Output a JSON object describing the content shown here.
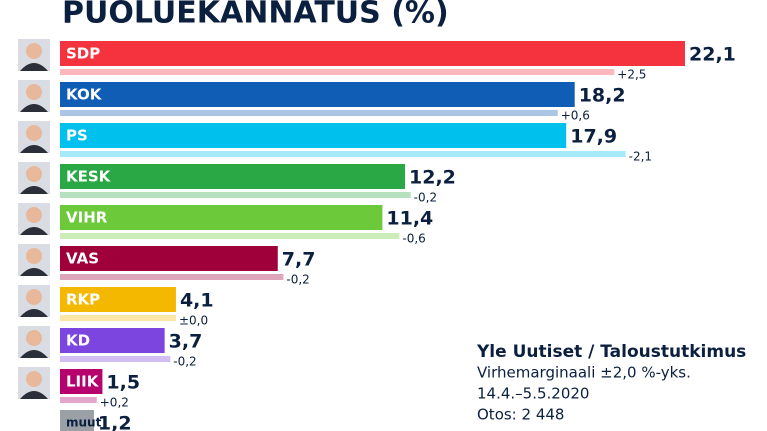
{
  "chart_data": {
    "type": "bar",
    "orientation": "horizontal",
    "title": "PUOLUEKANNATUS (%)",
    "categories": [
      "SDP",
      "KOK",
      "PS",
      "KESK",
      "VIHR",
      "VAS",
      "RKP",
      "KD",
      "LIIK",
      "muut"
    ],
    "values": [
      22.1,
      18.2,
      17.9,
      12.2,
      11.4,
      7.7,
      4.1,
      3.7,
      1.5,
      1.2
    ],
    "value_labels": [
      "22,1",
      "18,2",
      "17,9",
      "12,2",
      "11,4",
      "7,7",
      "4,1",
      "3,7",
      "1,5",
      "1,2"
    ],
    "changes": [
      2.5,
      0.6,
      -2.1,
      -0.2,
      -0.6,
      -0.2,
      0,
      -0.2,
      0.2,
      null
    ],
    "change_labels": [
      "+2,5",
      "+0,6",
      "-2,1",
      "-0,2",
      "-0,6",
      "-0,2",
      "±0,0",
      "-0,2",
      "+0,2",
      null
    ],
    "colors": [
      "#f5333f",
      "#0f5db5",
      "#00c0ee",
      "#2aa845",
      "#6cc93a",
      "#a0003a",
      "#f5b800",
      "#7d45e0",
      "#b5006e",
      "#9aa0a6"
    ],
    "source": {
      "title": "Yle Uutiset / Taloustutkimus",
      "lines": [
        "Virhemarginaali ±2,0 %-yks.",
        "14.4.–5.5.2020",
        "Otos: 2 448"
      ]
    }
  }
}
